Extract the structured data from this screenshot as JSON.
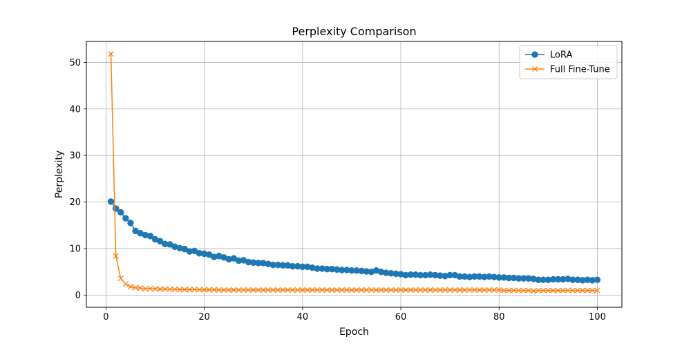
{
  "chart_data": {
    "type": "line",
    "title": "Perplexity Comparison",
    "xlabel": "Epoch",
    "ylabel": "Perplexity",
    "xlim": [
      -4,
      105
    ],
    "ylim": [
      -2.6,
      54.5
    ],
    "xticks": [
      0,
      20,
      40,
      60,
      80,
      100
    ],
    "yticks": [
      0,
      10,
      20,
      30,
      40,
      50
    ],
    "grid": true,
    "legend_position": "top-right",
    "series": [
      {
        "name": "LoRA",
        "color": "#1f77b4",
        "marker": "circle",
        "x": [
          1,
          2,
          3,
          4,
          5,
          6,
          7,
          8,
          9,
          10,
          11,
          12,
          13,
          14,
          15,
          16,
          17,
          18,
          19,
          20,
          21,
          22,
          23,
          24,
          25,
          26,
          27,
          28,
          29,
          30,
          31,
          32,
          33,
          34,
          35,
          36,
          37,
          38,
          39,
          40,
          41,
          42,
          43,
          44,
          45,
          46,
          47,
          48,
          49,
          50,
          51,
          52,
          53,
          54,
          55,
          56,
          57,
          58,
          59,
          60,
          61,
          62,
          63,
          64,
          65,
          66,
          67,
          68,
          69,
          70,
          71,
          72,
          73,
          74,
          75,
          76,
          77,
          78,
          79,
          80,
          81,
          82,
          83,
          84,
          85,
          86,
          87,
          88,
          89,
          90,
          91,
          92,
          93,
          94,
          95,
          96,
          97,
          98,
          99,
          100
        ],
        "y": [
          20.1,
          18.6,
          17.8,
          16.5,
          15.5,
          13.8,
          13.3,
          12.9,
          12.7,
          12.0,
          11.6,
          11.0,
          10.9,
          10.4,
          10.1,
          9.9,
          9.4,
          9.5,
          9.0,
          8.9,
          8.7,
          8.2,
          8.4,
          8.1,
          7.7,
          7.9,
          7.4,
          7.5,
          7.1,
          7.0,
          6.9,
          6.9,
          6.7,
          6.5,
          6.5,
          6.4,
          6.4,
          6.2,
          6.2,
          6.1,
          6.1,
          5.9,
          5.7,
          5.7,
          5.6,
          5.6,
          5.5,
          5.4,
          5.4,
          5.3,
          5.3,
          5.2,
          5.1,
          5.0,
          5.3,
          5.0,
          4.8,
          4.7,
          4.6,
          4.5,
          4.3,
          4.4,
          4.4,
          4.3,
          4.3,
          4.4,
          4.3,
          4.2,
          4.1,
          4.3,
          4.3,
          4.0,
          4.0,
          3.9,
          4.0,
          4.0,
          3.9,
          4.0,
          3.9,
          3.8,
          3.8,
          3.7,
          3.7,
          3.6,
          3.6,
          3.6,
          3.5,
          3.3,
          3.3,
          3.3,
          3.4,
          3.4,
          3.4,
          3.5,
          3.3,
          3.3,
          3.2,
          3.3,
          3.2,
          3.3
        ]
      },
      {
        "name": "Full Fine-Tune",
        "color": "#ff7f0e",
        "marker": "x",
        "x": [
          1,
          2,
          3,
          4,
          5,
          6,
          7,
          8,
          9,
          10,
          11,
          12,
          13,
          14,
          15,
          16,
          17,
          18,
          19,
          20,
          21,
          22,
          23,
          24,
          25,
          26,
          27,
          28,
          29,
          30,
          31,
          32,
          33,
          34,
          35,
          36,
          37,
          38,
          39,
          40,
          41,
          42,
          43,
          44,
          45,
          46,
          47,
          48,
          49,
          50,
          51,
          52,
          53,
          54,
          55,
          56,
          57,
          58,
          59,
          60,
          61,
          62,
          63,
          64,
          65,
          66,
          67,
          68,
          69,
          70,
          71,
          72,
          73,
          74,
          75,
          76,
          77,
          78,
          79,
          80,
          81,
          82,
          83,
          84,
          85,
          86,
          87,
          88,
          89,
          90,
          91,
          92,
          93,
          94,
          95,
          96,
          97,
          98,
          99,
          100
        ],
        "y": [
          51.8,
          8.4,
          3.6,
          2.4,
          1.8,
          1.6,
          1.5,
          1.4,
          1.4,
          1.35,
          1.3,
          1.3,
          1.25,
          1.25,
          1.2,
          1.2,
          1.2,
          1.2,
          1.15,
          1.15,
          1.15,
          1.15,
          1.1,
          1.1,
          1.1,
          1.1,
          1.1,
          1.1,
          1.1,
          1.1,
          1.1,
          1.1,
          1.1,
          1.1,
          1.1,
          1.1,
          1.1,
          1.1,
          1.1,
          1.1,
          1.1,
          1.1,
          1.1,
          1.1,
          1.1,
          1.1,
          1.1,
          1.1,
          1.1,
          1.1,
          1.1,
          1.1,
          1.1,
          1.1,
          1.1,
          1.1,
          1.1,
          1.1,
          1.1,
          1.1,
          1.1,
          1.1,
          1.1,
          1.1,
          1.1,
          1.1,
          1.1,
          1.1,
          1.1,
          1.1,
          1.1,
          1.1,
          1.1,
          1.1,
          1.1,
          1.1,
          1.1,
          1.1,
          1.1,
          1.1,
          1.0,
          1.0,
          1.0,
          1.0,
          1.0,
          1.0,
          0.9,
          1.0,
          1.0,
          1.0,
          1.0,
          1.0,
          1.0,
          1.0,
          1.0,
          1.0,
          1.0,
          1.0,
          1.0,
          1.0
        ]
      }
    ]
  }
}
